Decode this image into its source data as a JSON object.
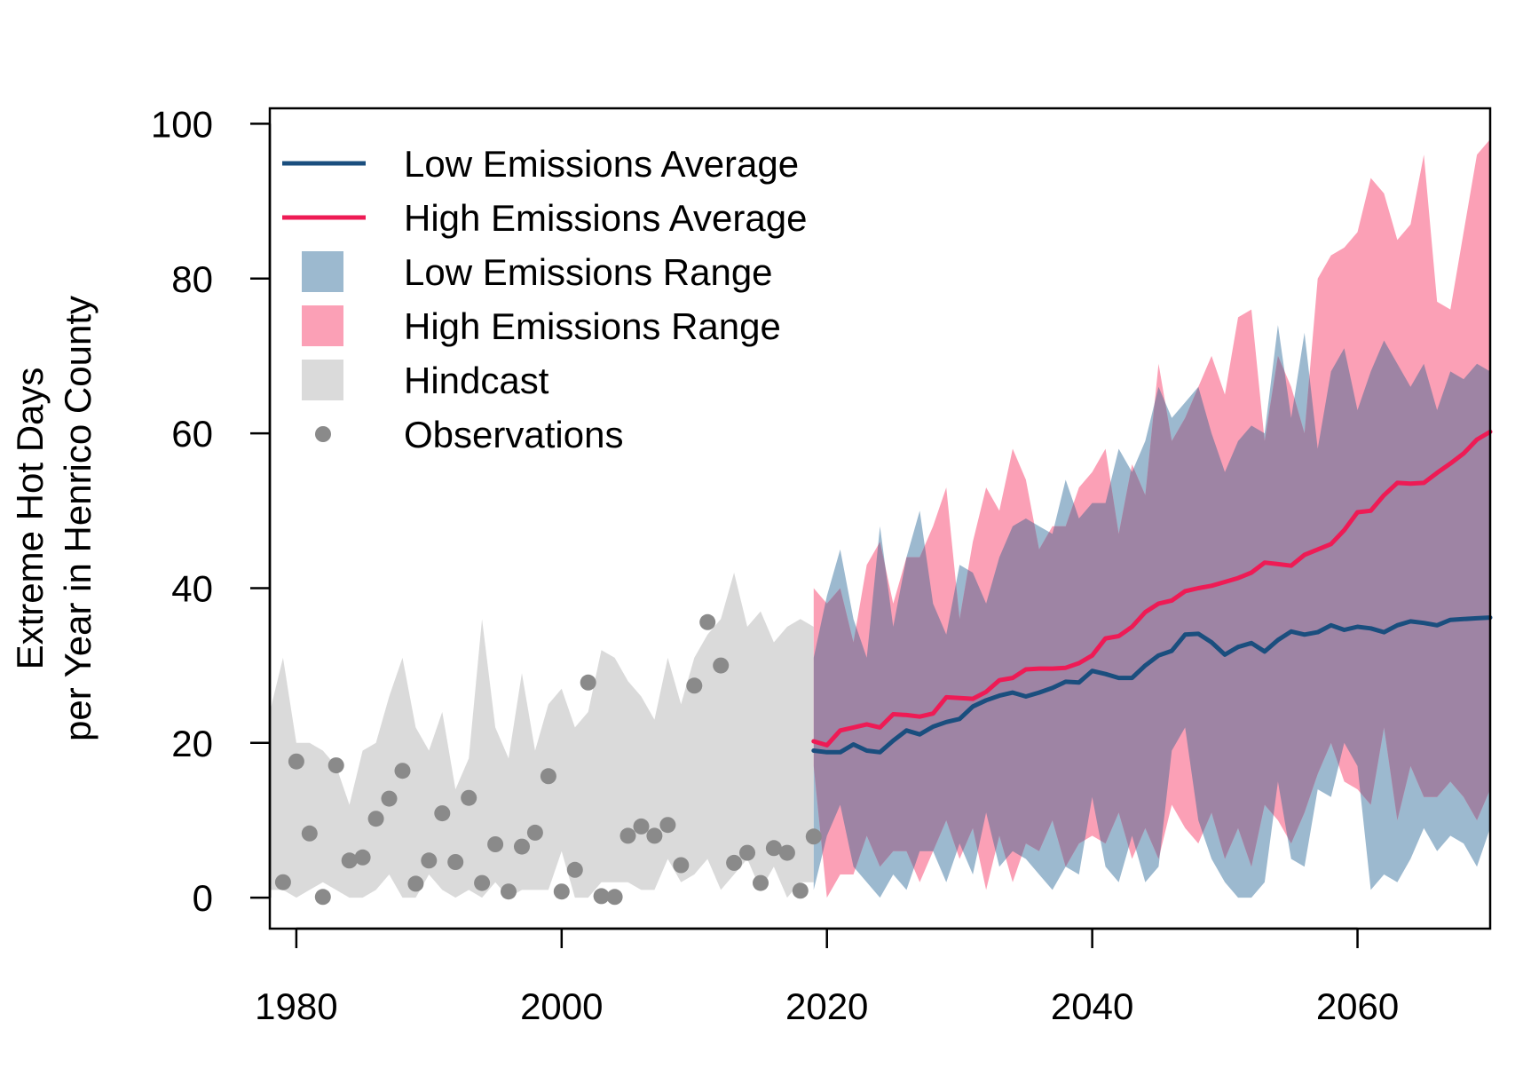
{
  "chart_data": {
    "type": "line",
    "title": "",
    "xlabel": "",
    "ylabel_line1": "Extreme Hot Days",
    "ylabel_line2": "per Year in Henrico County",
    "xlim": [
      1978,
      2070
    ],
    "ylim": [
      -4,
      102
    ],
    "xticks": [
      1980,
      2000,
      2020,
      2040,
      2060
    ],
    "yticks": [
      0,
      20,
      40,
      60,
      80,
      100
    ],
    "grid": false,
    "legend_position": "top-left",
    "colors": {
      "low_line": "#1a4e7e",
      "high_line": "#ee1b55",
      "low_band": "#9cb9cf",
      "high_band": "#fba0b6",
      "overlap_band": "#9e84a4",
      "hindcast_band": "#dadada",
      "observations": "#8a8a8a"
    },
    "legend": [
      {
        "label": "Low Emissions Average",
        "kind": "line",
        "color": "#1a4e7e"
      },
      {
        "label": "High Emissions Average",
        "kind": "line",
        "color": "#ee1b55"
      },
      {
        "label": "Low Emissions Range",
        "kind": "box",
        "color": "#9cb9cf"
      },
      {
        "label": "High Emissions Range",
        "kind": "box",
        "color": "#fba0b6"
      },
      {
        "label": "Hindcast",
        "kind": "box",
        "color": "#dadada"
      },
      {
        "label": "Observations",
        "kind": "dot",
        "color": "#8a8a8a"
      }
    ],
    "series": [
      {
        "name": "Hindcast",
        "kind": "band",
        "x": [
          1978,
          1979,
          1980,
          1981,
          1982,
          1983,
          1984,
          1985,
          1986,
          1987,
          1988,
          1989,
          1990,
          1991,
          1992,
          1993,
          1994,
          1995,
          1996,
          1997,
          1998,
          1999,
          2000,
          2001,
          2002,
          2003,
          2004,
          2005,
          2006,
          2007,
          2008,
          2009,
          2010,
          2011,
          2012,
          2013,
          2014,
          2015,
          2016,
          2017,
          2018,
          2019
        ],
        "upper": [
          24,
          31,
          20,
          20,
          19,
          17,
          12,
          19,
          20,
          26,
          31,
          22,
          19,
          24,
          14,
          18,
          36,
          22,
          18,
          29,
          19,
          25,
          27,
          22,
          24,
          32,
          31,
          28,
          26,
          23,
          31,
          25,
          31,
          34,
          36,
          42,
          35,
          37,
          33,
          35,
          36,
          35
        ],
        "lower": [
          1,
          1,
          0,
          1,
          2,
          1,
          0,
          0,
          1,
          3,
          0,
          0,
          3,
          1,
          0,
          1,
          0,
          2,
          0,
          1,
          1,
          1,
          6,
          0,
          0,
          2,
          2,
          2,
          1,
          1,
          5,
          2,
          3,
          5,
          1,
          3,
          5,
          1,
          4,
          0,
          2,
          2
        ]
      },
      {
        "name": "Low Emissions Range",
        "kind": "band",
        "x": [
          2019,
          2020,
          2021,
          2022,
          2023,
          2024,
          2025,
          2026,
          2027,
          2028,
          2029,
          2030,
          2031,
          2032,
          2033,
          2034,
          2035,
          2036,
          2037,
          2038,
          2039,
          2040,
          2041,
          2042,
          2043,
          2044,
          2045,
          2046,
          2047,
          2048,
          2049,
          2050,
          2051,
          2052,
          2053,
          2054,
          2055,
          2056,
          2057,
          2058,
          2059,
          2060,
          2061,
          2062,
          2063,
          2064,
          2065,
          2066,
          2067,
          2068,
          2069,
          2070
        ],
        "upper": [
          31,
          39,
          45,
          36,
          31,
          48,
          35,
          44,
          50,
          38,
          34,
          43,
          42,
          38,
          44,
          48,
          49,
          48,
          47,
          54,
          49,
          51,
          51,
          58,
          55,
          59,
          66,
          62,
          64,
          66,
          60,
          55,
          59,
          61,
          60,
          74,
          62,
          73,
          58,
          68,
          71,
          63,
          68,
          72,
          69,
          66,
          69,
          63,
          68,
          67,
          69,
          68
        ],
        "lower": [
          1,
          8,
          12,
          4,
          2,
          0,
          3,
          1,
          6,
          6,
          2,
          7,
          3,
          11,
          4,
          6,
          5,
          3,
          1,
          4,
          3,
          13,
          4,
          2,
          8,
          2,
          4,
          19,
          22,
          10,
          5,
          2,
          0,
          0,
          2,
          15,
          5,
          4,
          14,
          13,
          20,
          17,
          1,
          3,
          2,
          5,
          9,
          6,
          8,
          7,
          4,
          9
        ]
      },
      {
        "name": "High Emissions Range",
        "kind": "band",
        "x": [
          2019,
          2020,
          2021,
          2022,
          2023,
          2024,
          2025,
          2026,
          2027,
          2028,
          2029,
          2030,
          2031,
          2032,
          2033,
          2034,
          2035,
          2036,
          2037,
          2038,
          2039,
          2040,
          2041,
          2042,
          2043,
          2044,
          2045,
          2046,
          2047,
          2048,
          2049,
          2050,
          2051,
          2052,
          2053,
          2054,
          2055,
          2056,
          2057,
          2058,
          2059,
          2060,
          2061,
          2062,
          2063,
          2064,
          2065,
          2066,
          2067,
          2068,
          2069,
          2070
        ],
        "upper": [
          40,
          38,
          40,
          33,
          43,
          46,
          38,
          44,
          44,
          48,
          53,
          36,
          46,
          53,
          50,
          58,
          54,
          45,
          48,
          48,
          53,
          55,
          58,
          47,
          56,
          52,
          69,
          59,
          62,
          66,
          70,
          65,
          75,
          76,
          59,
          70,
          66,
          60,
          80,
          83,
          84,
          86,
          93,
          91,
          85,
          87,
          96,
          77,
          76,
          86,
          96,
          98
        ],
        "lower": [
          17,
          0,
          3,
          3,
          8,
          4,
          6,
          6,
          2,
          6,
          10,
          5,
          9,
          1,
          8,
          2,
          7,
          6,
          10,
          4,
          7,
          8,
          7,
          11,
          5,
          9,
          5,
          12,
          9,
          7,
          11,
          5,
          9,
          4,
          12,
          10,
          7,
          11,
          16,
          20,
          15,
          14,
          12,
          22,
          10,
          17,
          13,
          13,
          15,
          13,
          10,
          14
        ]
      },
      {
        "name": "Low Emissions Average",
        "kind": "line",
        "x": [
          2019,
          2020,
          2021,
          2022,
          2023,
          2024,
          2025,
          2026,
          2027,
          2028,
          2029,
          2030,
          2031,
          2032,
          2033,
          2034,
          2035,
          2036,
          2037,
          2038,
          2039,
          2040,
          2041,
          2042,
          2043,
          2044,
          2045,
          2046,
          2047,
          2048,
          2049,
          2050,
          2051,
          2052,
          2053,
          2054,
          2055,
          2056,
          2057,
          2058,
          2059,
          2060,
          2061,
          2062,
          2063,
          2064,
          2065,
          2066,
          2067,
          2068,
          2069,
          2070
        ],
        "values": [
          19.0,
          18.8,
          18.8,
          19.8,
          19.0,
          18.8,
          20.3,
          21.6,
          21.1,
          22.1,
          22.7,
          23.1,
          24.7,
          25.5,
          26.1,
          26.5,
          26.0,
          26.5,
          27.1,
          27.9,
          27.8,
          29.3,
          28.9,
          28.4,
          28.4,
          30.0,
          31.3,
          31.9,
          34.0,
          34.1,
          33.0,
          31.4,
          32.4,
          32.9,
          31.8,
          33.3,
          34.4,
          34.0,
          34.3,
          35.2,
          34.6,
          35.0,
          34.8,
          34.3,
          35.2,
          35.7,
          35.5,
          35.2,
          35.9,
          36.0,
          36.1,
          36.2
        ]
      },
      {
        "name": "High Emissions Average",
        "kind": "line",
        "x": [
          2019,
          2020,
          2021,
          2022,
          2023,
          2024,
          2025,
          2026,
          2027,
          2028,
          2029,
          2030,
          2031,
          2032,
          2033,
          2034,
          2035,
          2036,
          2037,
          2038,
          2039,
          2040,
          2041,
          2042,
          2043,
          2044,
          2045,
          2046,
          2047,
          2048,
          2049,
          2050,
          2051,
          2052,
          2053,
          2054,
          2055,
          2056,
          2057,
          2058,
          2059,
          2060,
          2061,
          2062,
          2063,
          2064,
          2065,
          2066,
          2067,
          2068,
          2069,
          2070
        ],
        "values": [
          20.2,
          19.7,
          21.6,
          22.0,
          22.4,
          22.0,
          23.7,
          23.6,
          23.4,
          23.8,
          25.9,
          25.8,
          25.7,
          26.6,
          28.1,
          28.4,
          29.5,
          29.6,
          29.6,
          29.7,
          30.3,
          31.3,
          33.5,
          33.8,
          35.0,
          36.9,
          38.0,
          38.4,
          39.6,
          40.0,
          40.3,
          40.8,
          41.3,
          42.0,
          43.3,
          43.1,
          42.9,
          44.3,
          45.0,
          45.7,
          47.5,
          49.8,
          50.0,
          52.0,
          53.6,
          53.5,
          53.6,
          54.9,
          56.1,
          57.4,
          59.2,
          60.2
        ]
      },
      {
        "name": "Observations",
        "kind": "scatter",
        "x": [
          1979,
          1980,
          1981,
          1982,
          1983,
          1984,
          1985,
          1986,
          1987,
          1988,
          1989,
          1990,
          1991,
          1992,
          1993,
          1994,
          1995,
          1996,
          1997,
          1998,
          1999,
          2000,
          2001,
          2002,
          2003,
          2004,
          2005,
          2006,
          2007,
          2008,
          2009,
          2010,
          2011,
          2012,
          2013,
          2014,
          2015,
          2016,
          2017,
          2018,
          2019
        ],
        "values": [
          2,
          17.6,
          8.3,
          0.1,
          17.1,
          4.8,
          5.2,
          10.2,
          12.8,
          16.4,
          1.8,
          4.8,
          10.9,
          4.6,
          12.9,
          1.9,
          6.9,
          0.8,
          6.6,
          8.4,
          15.7,
          0.8,
          3.6,
          27.8,
          0.2,
          0.1,
          8.0,
          9.2,
          8.0,
          9.4,
          4.2,
          27.4,
          35.6,
          30.0,
          4.5,
          5.8,
          1.9,
          6.4,
          5.8,
          0.9,
          7.9
        ]
      }
    ]
  }
}
